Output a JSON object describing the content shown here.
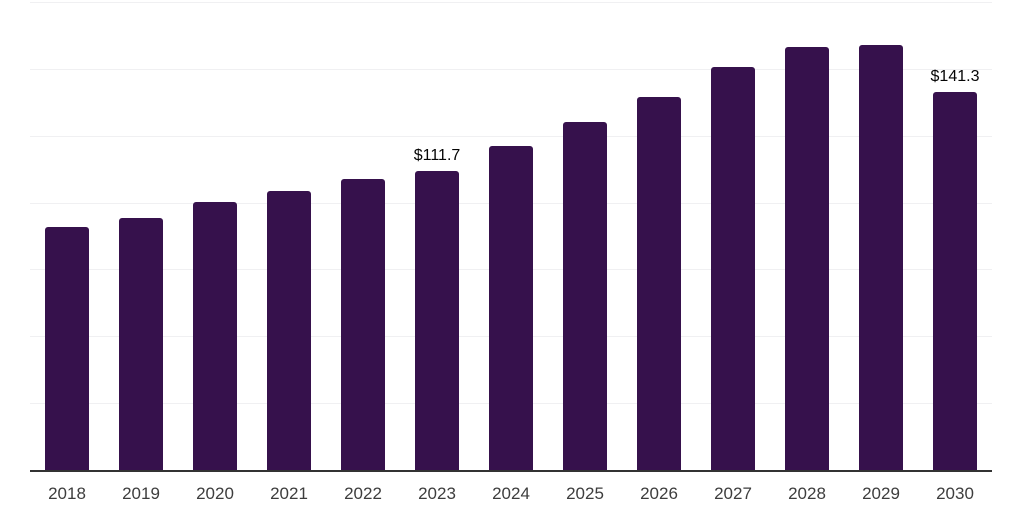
{
  "chart_data": {
    "type": "bar",
    "categories": [
      "2018",
      "2019",
      "2020",
      "2021",
      "2022",
      "2023",
      "2024",
      "2025",
      "2026",
      "2027",
      "2028",
      "2029",
      "2030"
    ],
    "values": [
      91.0,
      94.4,
      100.3,
      104.5,
      109.0,
      111.7,
      121.0,
      130.3,
      139.6,
      150.6,
      158.3,
      158.9,
      141.3
    ],
    "data_labels": [
      {
        "category": "2023",
        "text": "$111.7"
      },
      {
        "category": "2030",
        "text": "$141.3"
      }
    ],
    "title": "",
    "xlabel": "",
    "ylabel": "",
    "ylim": [
      0,
      175
    ],
    "gridline_step": 25,
    "grid": true,
    "legend": false,
    "bar_color": "#36114c",
    "gridline_color": "#f0f0f2",
    "axis_color": "#333333",
    "tick_label_color": "#3d3d3d",
    "data_label_color": "#050505"
  }
}
